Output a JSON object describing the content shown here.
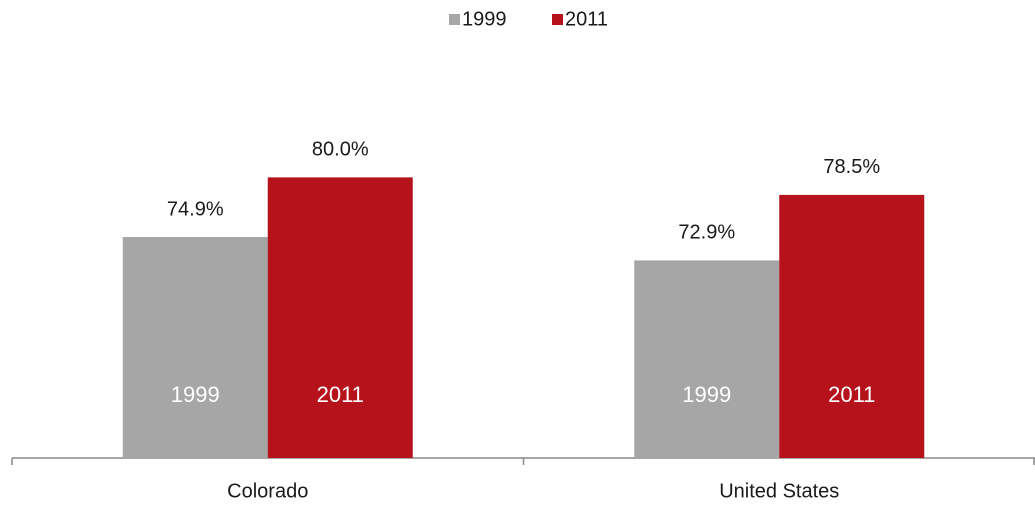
{
  "chart_data": {
    "type": "bar",
    "categories": [
      "Colorado",
      "United States"
    ],
    "series": [
      {
        "name": "1999",
        "color": "#a6a6a6",
        "values": [
          74.9,
          72.9
        ],
        "value_labels": [
          "74.9%",
          "72.9%"
        ]
      },
      {
        "name": "2011",
        "color": "#b5121b",
        "values": [
          80.0,
          78.5
        ],
        "value_labels": [
          "80.0%",
          "78.5%"
        ]
      }
    ],
    "ylim": [
      56,
      82
    ],
    "legend": "top"
  }
}
